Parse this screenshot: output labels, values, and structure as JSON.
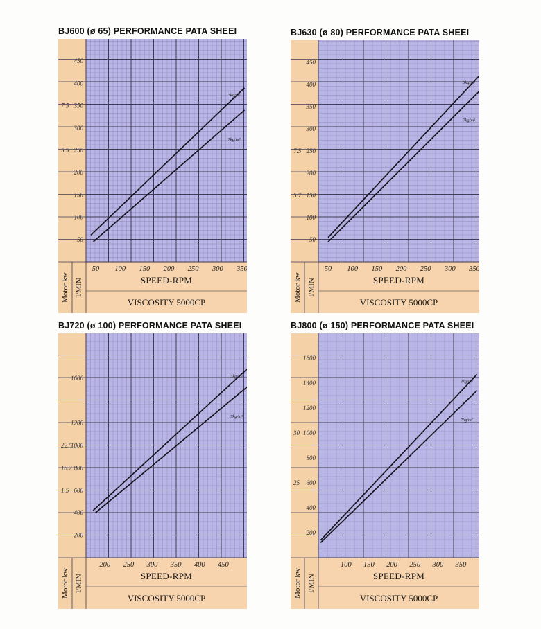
{
  "colors": {
    "sidebar": "#f5d1a8",
    "bottom": "#f7d4ad",
    "plot_bg": "#b9b5e7",
    "grid_minor": "#8e89b5",
    "grid_major": "#3e3b52",
    "line": "#15141c"
  },
  "chart_data": [
    {
      "type": "line",
      "title": "BJ600 (ø 65) PERFORMANCE PATA SHEEI",
      "xlabel": "SPEED-RPM",
      "footer": "VISCOSITY 5000CP",
      "sidebar_labels": [
        "Motor kw",
        "l/MIN"
      ],
      "x_ticks": [
        "50",
        "100",
        "150",
        "200",
        "250",
        "300",
        "350"
      ],
      "y_ticks": [
        "50",
        "100",
        "150",
        "200",
        "250",
        "300",
        "350",
        "400",
        "450"
      ],
      "kw_ticks": [
        {
          "label": "7.5",
          "y": 350
        },
        {
          "label": "5.5",
          "y": 250
        }
      ],
      "xlim": [
        30,
        360
      ],
      "ylim": [
        0,
        500
      ],
      "grid": true,
      "series": [
        {
          "name": "3kg/m²",
          "x": [
            40,
            355
          ],
          "y": [
            60,
            390
          ]
        },
        {
          "name": "7kg/m²",
          "x": [
            45,
            355
          ],
          "y": [
            45,
            340
          ]
        }
      ]
    },
    {
      "type": "line",
      "title": "BJ630 (ø 80) PERFORMANCE PATA SHEEI",
      "xlabel": "SPEED-RPM",
      "footer": "VISCOSITY 5000CP",
      "sidebar_labels": [
        "Motor kw",
        "l/MIN"
      ],
      "x_ticks": [
        "50",
        "100",
        "150",
        "200",
        "250",
        "300",
        "350"
      ],
      "y_ticks": [
        "50",
        "100",
        "150",
        "200",
        "250",
        "300",
        "350",
        "400",
        "450"
      ],
      "kw_ticks": [
        {
          "label": "7.5",
          "y": 250
        },
        {
          "label": "5.7",
          "y": 150
        }
      ],
      "xlim": [
        30,
        360
      ],
      "ylim": [
        0,
        500
      ],
      "grid": true,
      "series": [
        {
          "name": "3kg/m²",
          "x": [
            50,
            360
          ],
          "y": [
            55,
            420
          ]
        },
        {
          "name": "7kg/m²",
          "x": [
            50,
            360
          ],
          "y": [
            45,
            385
          ]
        }
      ]
    },
    {
      "type": "line",
      "title": "BJ720 (ø 100) PERFORMANCE PATA SHEEI",
      "xlabel": "SPEED-RPM",
      "footer": "VISCOSITY 5000CP",
      "sidebar_labels": [
        "Motor kw",
        "l/MIN"
      ],
      "x_ticks": [
        "200",
        "250",
        "300",
        "350",
        "400",
        "450"
      ],
      "y_ticks": [
        "200",
        "400",
        "600",
        "800",
        "1000",
        "1200",
        "1600"
      ],
      "kw_ticks": [
        {
          "label": "22.5",
          "y": 1000
        },
        {
          "label": "18.7",
          "y": 800
        },
        {
          "label": "1.5",
          "y": 600
        }
      ],
      "xlim": [
        160,
        500
      ],
      "ylim": [
        0,
        2000
      ],
      "grid": true,
      "series": [
        {
          "name": "3kg/m²",
          "x": [
            175,
            500
          ],
          "y": [
            420,
            1680
          ]
        },
        {
          "name": "7kg/m²",
          "x": [
            180,
            500
          ],
          "y": [
            400,
            1520
          ]
        }
      ]
    },
    {
      "type": "line",
      "title": "BJ800 (ø 150) PERFORMANCE PATA SHEEI",
      "xlabel": "SPEED-RPM",
      "footer": "VISCOSITY 5000CP",
      "sidebar_labels": [
        "Motor kw",
        "l/MIN"
      ],
      "x_ticks": [
        "100",
        "150",
        "200",
        "250",
        "300",
        "350"
      ],
      "y_ticks": [
        "200",
        "400",
        "600",
        "800",
        "1000",
        "1200",
        "1400",
        "1600"
      ],
      "kw_ticks": [
        {
          "label": "30",
          "y": 1000
        },
        {
          "label": "25",
          "y": 600
        }
      ],
      "xlim": [
        40,
        390
      ],
      "ylim": [
        0,
        1800
      ],
      "grid": true,
      "series": [
        {
          "name": "3kg/m²",
          "x": [
            45,
            385
          ],
          "y": [
            140,
            1470
          ]
        },
        {
          "name": "7kg/m²",
          "x": [
            45,
            385
          ],
          "y": [
            120,
            1340
          ]
        }
      ]
    }
  ]
}
